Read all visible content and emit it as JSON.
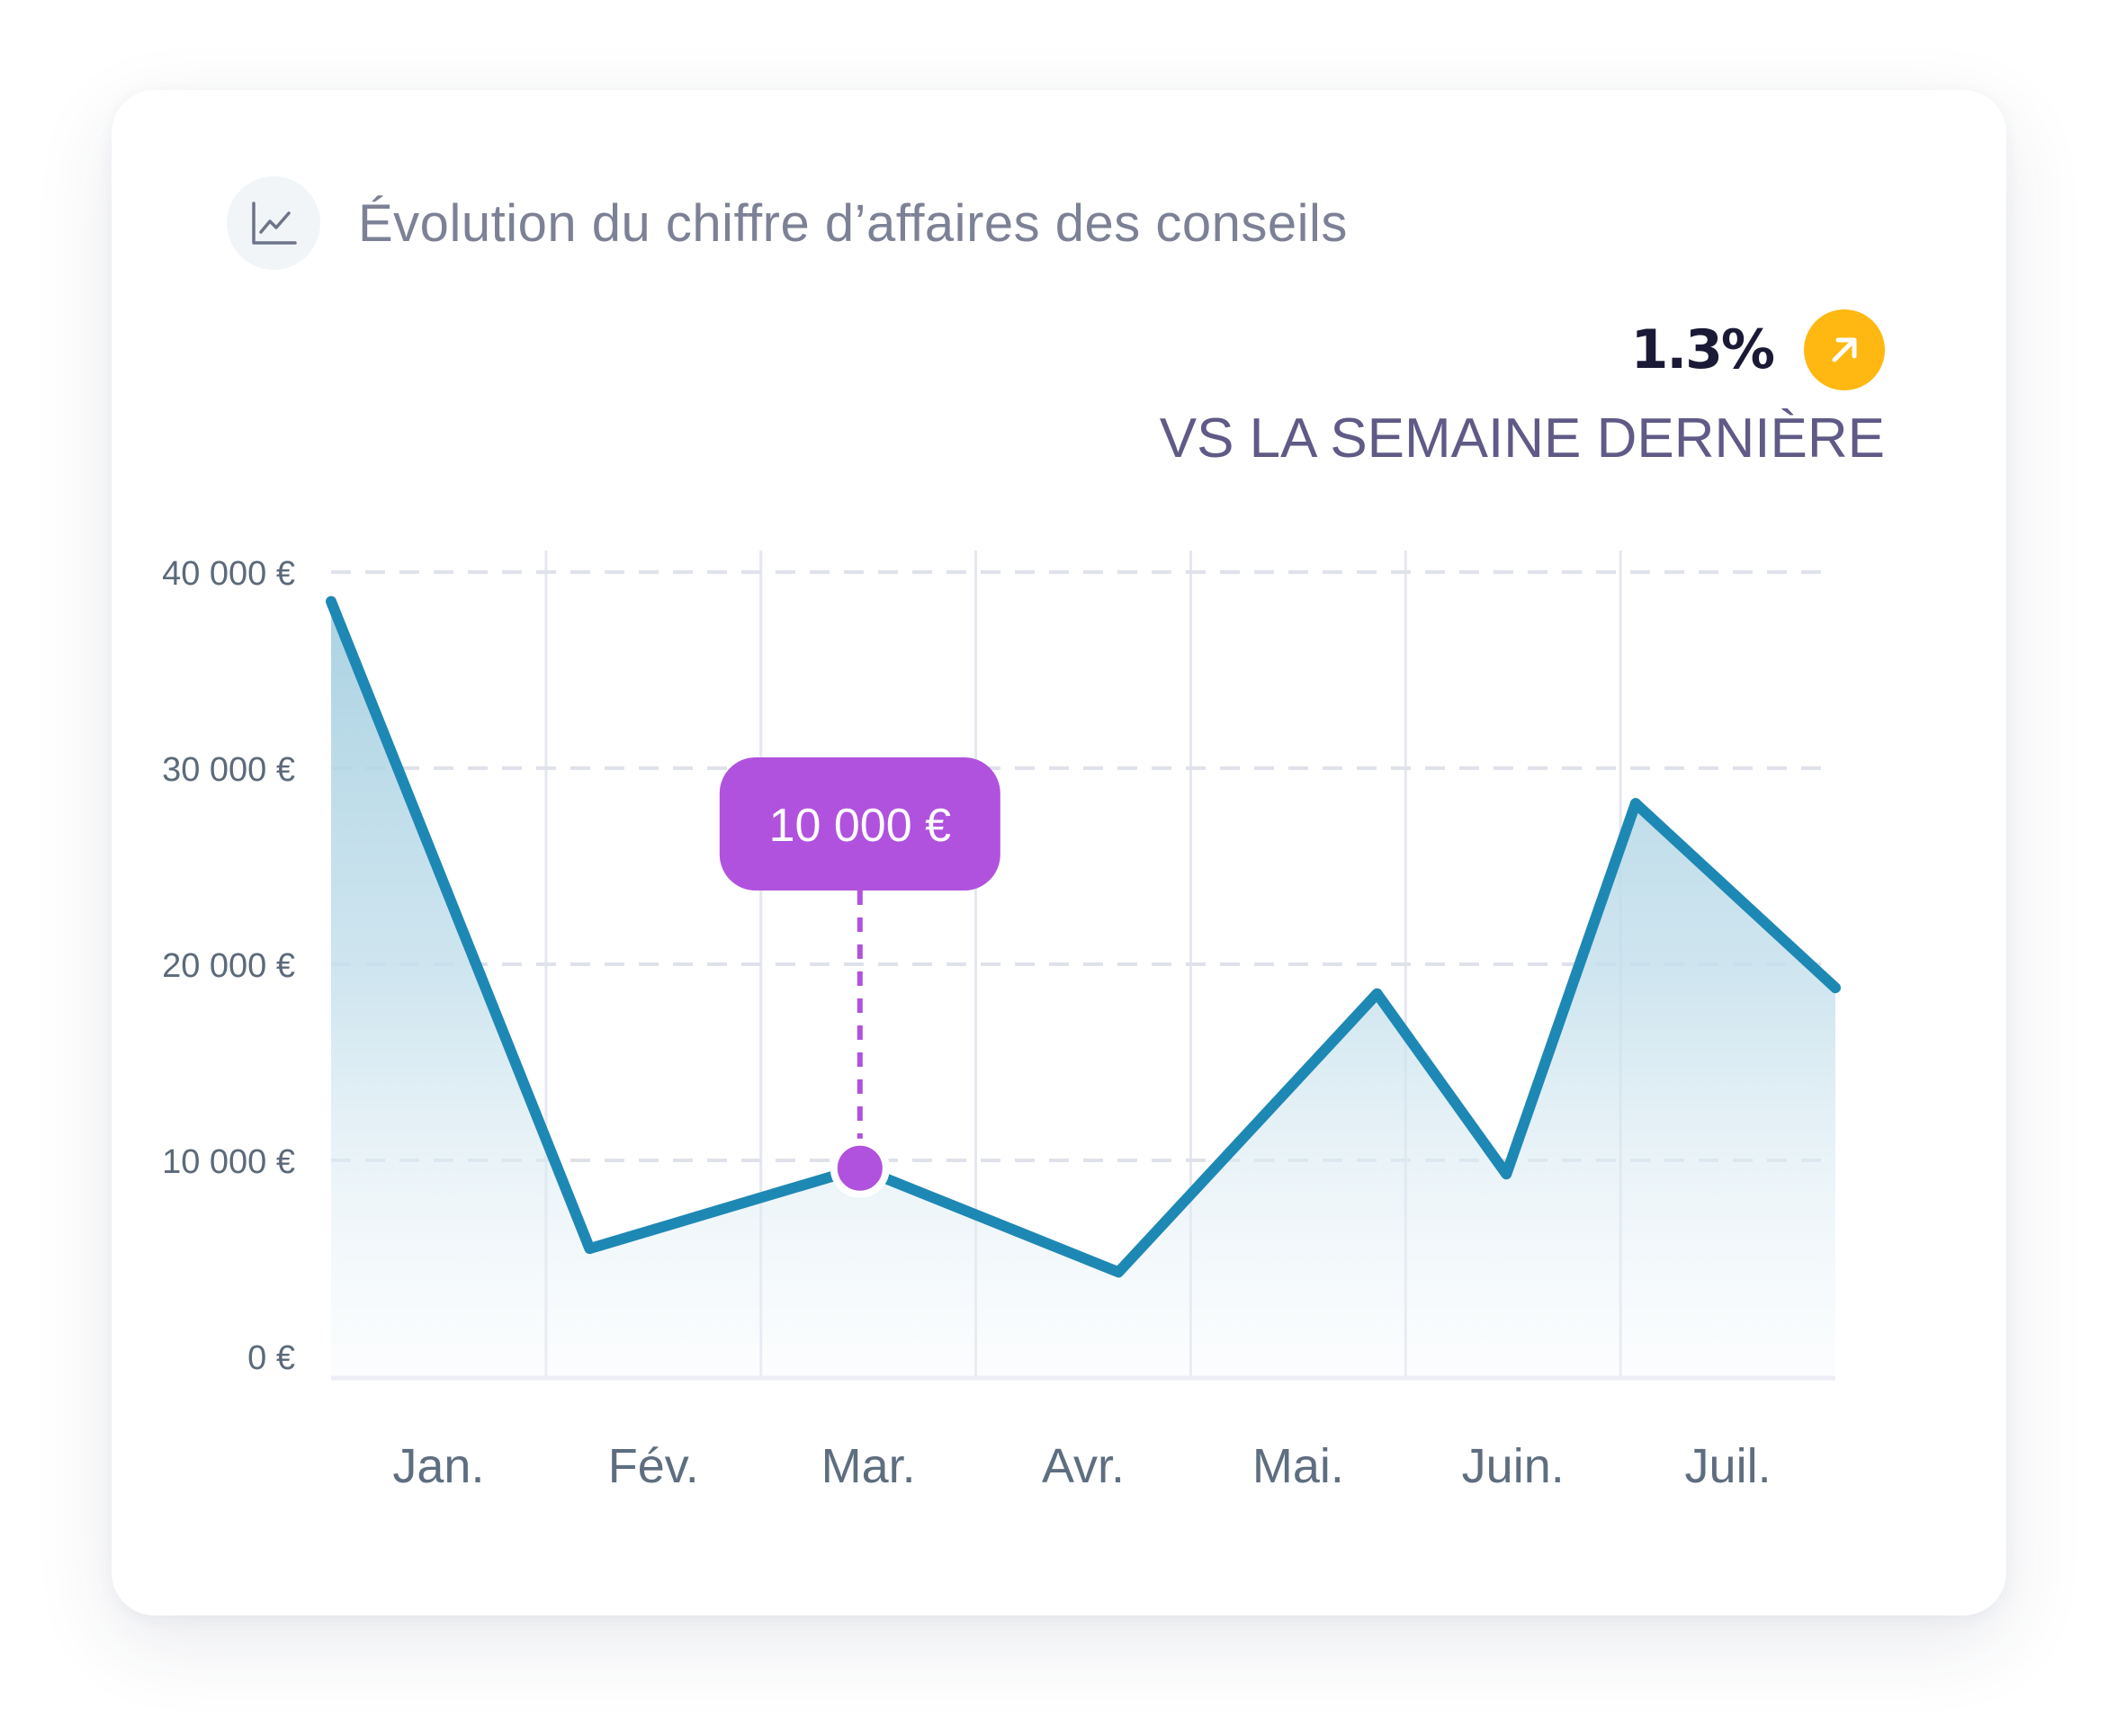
{
  "card": {
    "title": "Évolution du chiffre d’affaires des conseils",
    "title_icon": "line-chart-icon"
  },
  "kpi": {
    "value": "1.3%",
    "trend_icon": "arrow-up-right-icon",
    "subtitle": "VS LA SEMAINE DERNIÈRE",
    "badge_color": "#ffb812"
  },
  "colors": {
    "line": "#1e88b4",
    "area": "#a7d0e1",
    "highlight": "#b052de"
  },
  "chart_data": {
    "type": "area",
    "title": "Évolution du chiffre d’affaires des conseils",
    "xlabel": "",
    "ylabel": "",
    "categories": [
      "Jan.",
      "Fév.",
      "Mar.",
      "Avr.",
      "Mai.",
      "Juin.",
      "Juil."
    ],
    "yticks": [
      {
        "value": 0,
        "label": "0 €"
      },
      {
        "value": 10000,
        "label": "10 000 €"
      },
      {
        "value": 20000,
        "label": "20 000 €"
      },
      {
        "value": 30000,
        "label": "30 000 €"
      },
      {
        "value": 40000,
        "label": "40 000 €"
      }
    ],
    "ylim": [
      0,
      41000
    ],
    "xlim": [
      0,
      6.4
    ],
    "grid": true,
    "series": [
      {
        "name": "Chiffre d’affaires",
        "points": [
          {
            "x": 0.0,
            "y": 38500
          },
          {
            "x": 1.1,
            "y": 5500
          },
          {
            "x": 2.25,
            "y": 9600
          },
          {
            "x": 3.35,
            "y": 4300
          },
          {
            "x": 4.45,
            "y": 18500
          },
          {
            "x": 5.0,
            "y": 9300
          },
          {
            "x": 5.55,
            "y": 28200
          },
          {
            "x": 6.4,
            "y": 18800
          }
        ]
      }
    ],
    "highlight": {
      "x": 2.25,
      "y": 9600,
      "label": "10 000 €"
    }
  }
}
